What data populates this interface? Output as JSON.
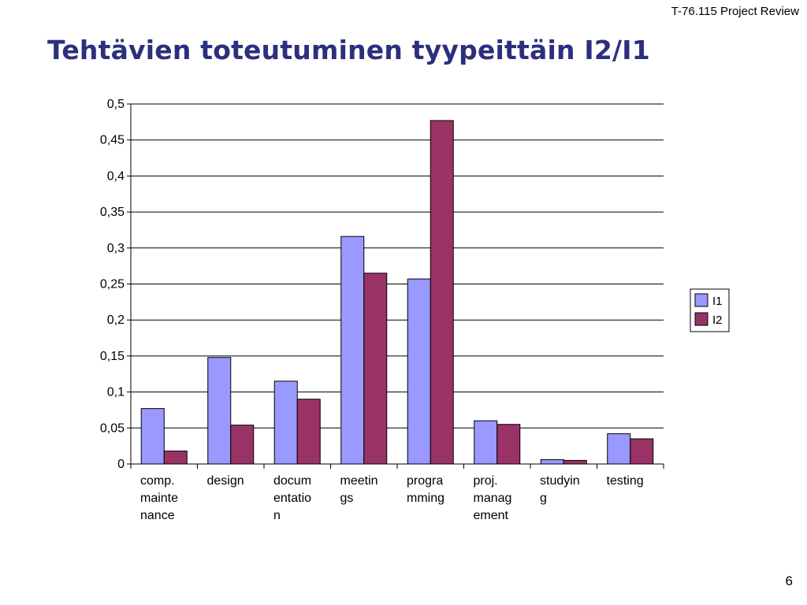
{
  "header": {
    "course_label": "T-76.115 Project Review"
  },
  "slide": {
    "title": "Tehtävien toteutuminen tyypeittäin I2/I1",
    "page_number": "6"
  },
  "colors": {
    "I1": "#9999ff",
    "I2": "#993366",
    "title": "#2b2f7d",
    "grid": "#000000"
  },
  "chart_data": {
    "type": "bar",
    "title": "",
    "xlabel": "",
    "ylabel": "",
    "categories": [
      "comp. maintenance",
      "design",
      "documentation",
      "meetings",
      "programming",
      "proj. management",
      "studying",
      "testing"
    ],
    "category_label_lines": [
      [
        "comp.",
        "mainte",
        "nance"
      ],
      [
        "design"
      ],
      [
        "docum",
        "entatio",
        "n"
      ],
      [
        "meetin",
        "gs"
      ],
      [
        "progra",
        "mming"
      ],
      [
        "proj.",
        "manag",
        "ement"
      ],
      [
        "studyin",
        "g"
      ],
      [
        "testing"
      ]
    ],
    "series": [
      {
        "name": "I1",
        "values": [
          0.077,
          0.148,
          0.115,
          0.316,
          0.257,
          0.06,
          0.006,
          0.042
        ]
      },
      {
        "name": "I2",
        "values": [
          0.018,
          0.054,
          0.09,
          0.265,
          0.477,
          0.055,
          0.005,
          0.035
        ]
      }
    ],
    "ylim": [
      0,
      0.5
    ],
    "yticks": [
      0,
      0.05,
      0.1,
      0.15,
      0.2,
      0.25,
      0.3,
      0.35,
      0.4,
      0.45,
      0.5
    ],
    "ytick_labels": [
      "0",
      "0,05",
      "0,1",
      "0,15",
      "0,2",
      "0,25",
      "0,3",
      "0,35",
      "0,4",
      "0,45",
      "0,5"
    ],
    "grid": true,
    "legend_position": "right"
  }
}
